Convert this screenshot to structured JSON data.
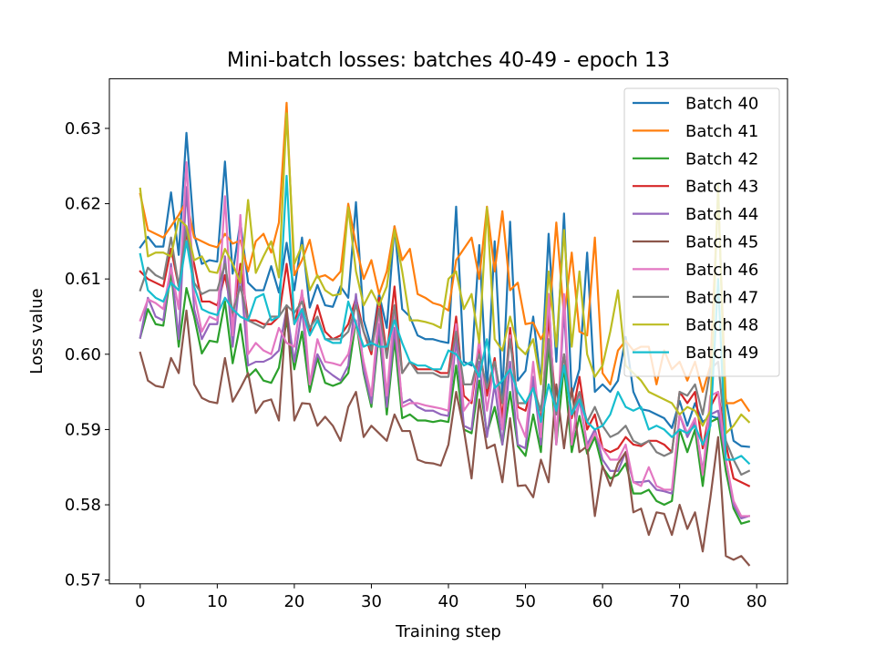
{
  "chart_data": {
    "type": "line",
    "title": "Mini-batch losses: batches 40-49 - epoch 13",
    "xlabel": "Training step",
    "ylabel": "Loss value",
    "xlim": [
      -4,
      84
    ],
    "ylim": [
      0.5695,
      0.6366
    ],
    "xticks": [
      0,
      10,
      20,
      30,
      40,
      50,
      60,
      70,
      80
    ],
    "yticks": [
      0.57,
      0.58,
      0.59,
      0.6,
      0.61,
      0.62,
      0.63
    ],
    "ytick_labels": [
      "0.57",
      "0.58",
      "0.59",
      "0.60",
      "0.61",
      "0.62",
      "0.63"
    ],
    "grid": false,
    "legend_position": "top-right",
    "x": [
      0,
      1,
      2,
      3,
      4,
      5,
      6,
      7,
      8,
      9,
      10,
      11,
      12,
      13,
      14,
      15,
      16,
      17,
      18,
      19,
      20,
      21,
      22,
      23,
      24,
      25,
      26,
      27,
      28,
      29,
      30,
      31,
      32,
      33,
      34,
      35,
      36,
      37,
      38,
      39,
      40,
      41,
      42,
      43,
      44,
      45,
      46,
      47,
      48,
      49,
      50,
      51,
      52,
      53,
      54,
      55,
      56,
      57,
      58,
      59,
      60,
      61,
      62,
      63,
      64,
      65,
      66,
      67,
      68,
      69,
      70,
      71,
      72,
      73,
      74,
      75,
      76,
      77,
      78,
      79
    ],
    "series": [
      {
        "name": "Batch 40",
        "color": "#1f77b4",
        "values": [
          0.6142,
          0.6156,
          0.6143,
          0.6143,
          0.6215,
          0.6132,
          0.6294,
          0.616,
          0.612,
          0.6125,
          0.6123,
          0.6256,
          0.6107,
          0.6176,
          0.6095,
          0.6085,
          0.6085,
          0.6117,
          0.6082,
          0.6148,
          0.6085,
          0.6155,
          0.6062,
          0.6092,
          0.6065,
          0.6063,
          0.609,
          0.6075,
          0.6202,
          0.6045,
          0.601,
          0.608,
          0.6035,
          0.617,
          0.606,
          0.605,
          0.6025,
          0.602,
          0.602,
          0.6017,
          0.6015,
          0.6196,
          0.599,
          0.5985,
          0.6145,
          0.595,
          0.615,
          0.5945,
          0.6176,
          0.5965,
          0.5978,
          0.605,
          0.5962,
          0.616,
          0.599,
          0.6187,
          0.5945,
          0.598,
          0.6135,
          0.595,
          0.596,
          0.595,
          0.5965,
          0.6023,
          0.595,
          0.5927,
          0.5925,
          0.592,
          0.5915,
          0.5902,
          0.5938,
          0.5905,
          0.5935,
          0.591,
          0.5918,
          0.5915,
          0.594,
          0.5885,
          0.5878,
          0.5877
        ]
      },
      {
        "name": "Batch 41",
        "color": "#ff7f0e",
        "values": [
          0.6213,
          0.6165,
          0.616,
          0.6155,
          0.617,
          0.6185,
          0.6204,
          0.6155,
          0.615,
          0.6145,
          0.6142,
          0.616,
          0.6147,
          0.6151,
          0.611,
          0.615,
          0.616,
          0.6135,
          0.6175,
          0.6334,
          0.6105,
          0.6125,
          0.6152,
          0.6102,
          0.6105,
          0.6098,
          0.611,
          0.62,
          0.6145,
          0.61,
          0.6125,
          0.608,
          0.611,
          0.617,
          0.6125,
          0.614,
          0.608,
          0.6075,
          0.6068,
          0.6065,
          0.6058,
          0.6125,
          0.614,
          0.6155,
          0.61,
          0.6196,
          0.611,
          0.619,
          0.6085,
          0.6095,
          0.604,
          0.6042,
          0.602,
          0.604,
          0.6175,
          0.605,
          0.6135,
          0.603,
          0.6025,
          0.6155,
          0.5975,
          0.596,
          0.6005,
          0.6018,
          0.6005,
          0.601,
          0.601,
          0.596,
          0.6005,
          0.598,
          0.599,
          0.5965,
          0.599,
          0.595,
          0.5985,
          0.6211,
          0.5935,
          0.5935,
          0.594,
          0.5925
        ]
      },
      {
        "name": "Batch 42",
        "color": "#2ca02c",
        "values": [
          0.6022,
          0.606,
          0.604,
          0.6038,
          0.611,
          0.601,
          0.6088,
          0.605,
          0.6001,
          0.6018,
          0.6016,
          0.607,
          0.5988,
          0.604,
          0.597,
          0.598,
          0.5965,
          0.5962,
          0.5982,
          0.6045,
          0.598,
          0.603,
          0.595,
          0.5995,
          0.5962,
          0.5958,
          0.5962,
          0.5975,
          0.6045,
          0.5975,
          0.593,
          0.603,
          0.592,
          0.602,
          0.5915,
          0.592,
          0.5912,
          0.5912,
          0.591,
          0.5912,
          0.591,
          0.5985,
          0.59,
          0.5895,
          0.5965,
          0.5895,
          0.593,
          0.588,
          0.595,
          0.5878,
          0.5865,
          0.592,
          0.587,
          0.6015,
          0.588,
          0.5985,
          0.587,
          0.5918,
          0.5868,
          0.589,
          0.585,
          0.5835,
          0.584,
          0.5855,
          0.5815,
          0.5815,
          0.582,
          0.5805,
          0.58,
          0.5805,
          0.59,
          0.587,
          0.59,
          0.5825,
          0.591,
          0.5915,
          0.5845,
          0.5795,
          0.5775,
          0.5778
        ]
      },
      {
        "name": "Batch 43",
        "color": "#d62728",
        "values": [
          0.611,
          0.61,
          0.6095,
          0.609,
          0.614,
          0.609,
          0.616,
          0.612,
          0.607,
          0.607,
          0.6065,
          0.6105,
          0.605,
          0.612,
          0.6045,
          0.6045,
          0.604,
          0.604,
          0.605,
          0.612,
          0.604,
          0.608,
          0.603,
          0.6065,
          0.603,
          0.602,
          0.6025,
          0.604,
          0.6075,
          0.603,
          0.6,
          0.6075,
          0.6,
          0.609,
          0.5975,
          0.599,
          0.598,
          0.598,
          0.598,
          0.5975,
          0.5975,
          0.605,
          0.5945,
          0.5935,
          0.601,
          0.5945,
          0.5995,
          0.5915,
          0.6035,
          0.593,
          0.5925,
          0.5965,
          0.591,
          0.605,
          0.592,
          0.6,
          0.5915,
          0.597,
          0.59,
          0.592,
          0.5875,
          0.587,
          0.5875,
          0.589,
          0.588,
          0.5878,
          0.5885,
          0.5885,
          0.588,
          0.587,
          0.595,
          0.5935,
          0.595,
          0.5875,
          0.593,
          0.595,
          0.588,
          0.5835,
          0.583,
          0.5825
        ]
      },
      {
        "name": "Batch 44",
        "color": "#9467bd",
        "values": [
          0.6022,
          0.6075,
          0.605,
          0.6045,
          0.612,
          0.602,
          0.6222,
          0.606,
          0.602,
          0.604,
          0.604,
          0.613,
          0.601,
          0.611,
          0.5985,
          0.599,
          0.599,
          0.5995,
          0.6005,
          0.606,
          0.599,
          0.606,
          0.596,
          0.6,
          0.598,
          0.5972,
          0.5965,
          0.5985,
          0.608,
          0.598,
          0.5935,
          0.604,
          0.593,
          0.6035,
          0.5935,
          0.594,
          0.593,
          0.5925,
          0.5925,
          0.592,
          0.5918,
          0.602,
          0.5905,
          0.59,
          0.599,
          0.589,
          0.596,
          0.588,
          0.599,
          0.588,
          0.5875,
          0.597,
          0.588,
          0.608,
          0.588,
          0.606,
          0.588,
          0.594,
          0.588,
          0.59,
          0.586,
          0.5845,
          0.5845,
          0.587,
          0.583,
          0.583,
          0.5832,
          0.582,
          0.5818,
          0.5815,
          0.592,
          0.589,
          0.591,
          0.5845,
          0.592,
          0.5925,
          0.586,
          0.58,
          0.5782,
          0.5785
        ]
      },
      {
        "name": "Batch 45",
        "color": "#8c564b",
        "values": [
          0.6002,
          0.5965,
          0.5958,
          0.5956,
          0.5995,
          0.5975,
          0.6058,
          0.596,
          0.5942,
          0.5937,
          0.5935,
          0.5995,
          0.5937,
          0.5955,
          0.5975,
          0.5922,
          0.5937,
          0.594,
          0.5912,
          0.6065,
          0.5912,
          0.5935,
          0.5934,
          0.5905,
          0.5917,
          0.5905,
          0.5885,
          0.593,
          0.595,
          0.589,
          0.5905,
          0.5895,
          0.5885,
          0.592,
          0.5898,
          0.5898,
          0.586,
          0.5856,
          0.5855,
          0.5852,
          0.588,
          0.595,
          0.59,
          0.5835,
          0.594,
          0.5875,
          0.588,
          0.583,
          0.5915,
          0.5825,
          0.5826,
          0.581,
          0.586,
          0.583,
          0.596,
          0.5875,
          0.5955,
          0.587,
          0.5878,
          0.5785,
          0.5852,
          0.5825,
          0.5855,
          0.587,
          0.579,
          0.5795,
          0.576,
          0.579,
          0.5788,
          0.576,
          0.58,
          0.5768,
          0.579,
          0.5738,
          0.581,
          0.589,
          0.5732,
          0.5727,
          0.5732,
          0.572
        ]
      },
      {
        "name": "Batch 46",
        "color": "#e377c2",
        "values": [
          0.6045,
          0.6073,
          0.6068,
          0.606,
          0.6115,
          0.606,
          0.6255,
          0.608,
          0.603,
          0.605,
          0.6045,
          0.621,
          0.6025,
          0.6185,
          0.6,
          0.6015,
          0.6005,
          0.6,
          0.6035,
          0.6015,
          0.601,
          0.6085,
          0.596,
          0.602,
          0.599,
          0.5988,
          0.5985,
          0.6,
          0.6045,
          0.599,
          0.5945,
          0.606,
          0.5945,
          0.606,
          0.593,
          0.5935,
          0.5935,
          0.5932,
          0.593,
          0.5928,
          0.5925,
          0.604,
          0.5925,
          0.594,
          0.602,
          0.5925,
          0.599,
          0.59,
          0.6025,
          0.5915,
          0.589,
          0.599,
          0.589,
          0.608,
          0.588,
          0.608,
          0.588,
          0.595,
          0.5875,
          0.5895,
          0.5875,
          0.586,
          0.586,
          0.588,
          0.583,
          0.5825,
          0.585,
          0.5825,
          0.582,
          0.582,
          0.592,
          0.5895,
          0.5915,
          0.584,
          0.5945,
          0.595,
          0.586,
          0.5805,
          0.5785,
          0.5785
        ]
      },
      {
        "name": "Batch 47",
        "color": "#7f7f7f",
        "values": [
          0.6085,
          0.6115,
          0.6105,
          0.61,
          0.6155,
          0.609,
          0.6168,
          0.6095,
          0.608,
          0.6085,
          0.6085,
          0.612,
          0.6055,
          0.609,
          0.6045,
          0.604,
          0.6035,
          0.605,
          0.605,
          0.6065,
          0.6055,
          0.607,
          0.6035,
          0.605,
          0.602,
          0.602,
          0.602,
          0.603,
          0.6065,
          0.603,
          0.6005,
          0.606,
          0.5995,
          0.6065,
          0.5975,
          0.599,
          0.5975,
          0.5975,
          0.5975,
          0.597,
          0.597,
          0.603,
          0.596,
          0.596,
          0.6,
          0.5955,
          0.599,
          0.5935,
          0.602,
          0.5935,
          0.5935,
          0.5955,
          0.5925,
          0.602,
          0.592,
          0.6,
          0.592,
          0.595,
          0.591,
          0.593,
          0.5905,
          0.589,
          0.5895,
          0.5905,
          0.5885,
          0.588,
          0.5885,
          0.587,
          0.5865,
          0.587,
          0.595,
          0.5945,
          0.596,
          0.592,
          0.598,
          0.599,
          0.5885,
          0.586,
          0.584,
          0.5845
        ]
      },
      {
        "name": "Batch 48",
        "color": "#bcbd22",
        "values": [
          0.622,
          0.613,
          0.6135,
          0.6135,
          0.613,
          0.618,
          0.617,
          0.6125,
          0.613,
          0.611,
          0.6108,
          0.614,
          0.612,
          0.6095,
          0.6205,
          0.6108,
          0.613,
          0.615,
          0.6102,
          0.632,
          0.612,
          0.6145,
          0.6085,
          0.6105,
          0.6085,
          0.6078,
          0.608,
          0.6195,
          0.611,
          0.6065,
          0.6085,
          0.6065,
          0.609,
          0.6165,
          0.611,
          0.6045,
          0.6045,
          0.6043,
          0.604,
          0.6035,
          0.61,
          0.611,
          0.606,
          0.608,
          0.6015,
          0.6195,
          0.602,
          0.6005,
          0.605,
          0.601,
          0.6,
          0.602,
          0.596,
          0.611,
          0.601,
          0.6165,
          0.601,
          0.611,
          0.6,
          0.597,
          0.5985,
          0.603,
          0.6085,
          0.5985,
          0.5975,
          0.5965,
          0.595,
          0.5945,
          0.594,
          0.5935,
          0.592,
          0.593,
          0.5925,
          0.5905,
          0.5925,
          0.6225,
          0.5895,
          0.5905,
          0.592,
          0.591
        ]
      },
      {
        "name": "Batch 49",
        "color": "#17becf",
        "values": [
          0.6133,
          0.6085,
          0.6075,
          0.607,
          0.6095,
          0.6085,
          0.615,
          0.609,
          0.606,
          0.6055,
          0.6052,
          0.6075,
          0.606,
          0.605,
          0.6045,
          0.6075,
          0.608,
          0.6045,
          0.605,
          0.6237,
          0.604,
          0.606,
          0.6025,
          0.6045,
          0.602,
          0.6015,
          0.6015,
          0.607,
          0.604,
          0.601,
          0.6015,
          0.601,
          0.601,
          0.6045,
          0.6015,
          0.599,
          0.5985,
          0.5985,
          0.598,
          0.598,
          0.6005,
          0.6,
          0.5985,
          0.599,
          0.597,
          0.602,
          0.5955,
          0.5965,
          0.598,
          0.595,
          0.5935,
          0.5955,
          0.591,
          0.596,
          0.5925,
          0.5985,
          0.592,
          0.594,
          0.591,
          0.59,
          0.5905,
          0.592,
          0.595,
          0.593,
          0.5925,
          0.593,
          0.59,
          0.5905,
          0.59,
          0.589,
          0.59,
          0.5895,
          0.5905,
          0.588,
          0.5905,
          0.61,
          0.586,
          0.586,
          0.5865,
          0.5855
        ]
      }
    ]
  }
}
